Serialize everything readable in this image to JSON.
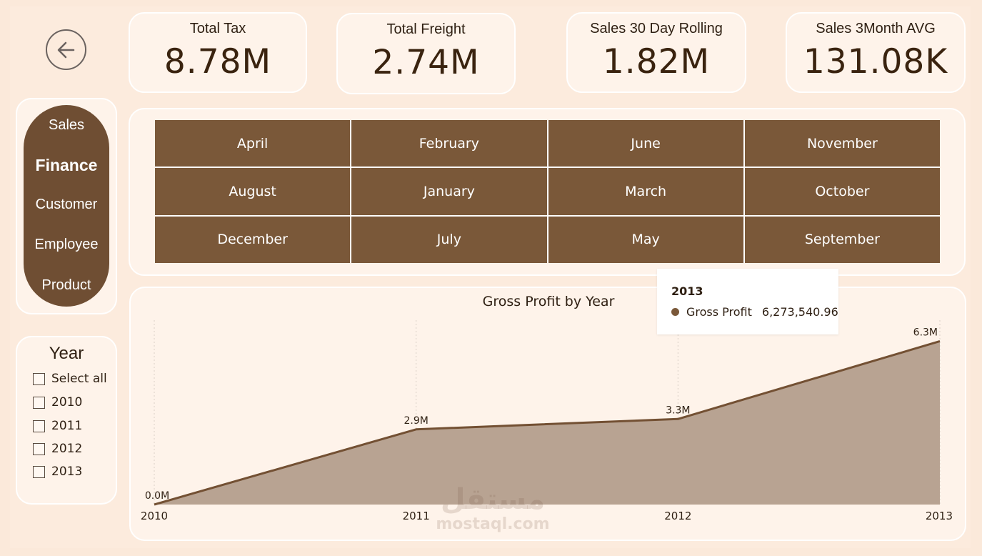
{
  "kpis": [
    {
      "title": "Total Tax",
      "value": "8.78M"
    },
    {
      "title": "Total Freight",
      "value": "2.74M"
    },
    {
      "title": "Sales 30 Day Rolling",
      "value": "1.82M"
    },
    {
      "title": "Sales 3Month AVG",
      "value": "131.08K"
    }
  ],
  "nav": {
    "items": [
      "Sales",
      "Finance",
      "Customer",
      "Employee",
      "Product"
    ],
    "active": "Finance"
  },
  "year_slicer": {
    "title": "Year",
    "options": [
      "Select all",
      "2010",
      "2011",
      "2012",
      "2013"
    ]
  },
  "months": [
    "April",
    "February",
    "June",
    "November",
    "August",
    "January",
    "March",
    "October",
    "December",
    "July",
    "May",
    "September"
  ],
  "chart_data": {
    "type": "area",
    "title": "Gross Profit by Year",
    "x": [
      "2010",
      "2011",
      "2012",
      "2013"
    ],
    "series": [
      {
        "name": "Gross Profit",
        "values": [
          0.0,
          2.9,
          3.3,
          6.3
        ],
        "labels": [
          "0.0M",
          "2.9M",
          "3.3M",
          "6.3M"
        ]
      }
    ],
    "ylim": [
      0,
      7.0
    ],
    "grid": "vertical-dotted",
    "colors": {
      "line": "#735033",
      "fill": "#b8a392"
    }
  },
  "tooltip": {
    "title": "2013",
    "series_name": "Gross Profit",
    "value": "6,273,540.96"
  },
  "watermark": {
    "logo": "مستقل",
    "url": "mostaql.com"
  }
}
